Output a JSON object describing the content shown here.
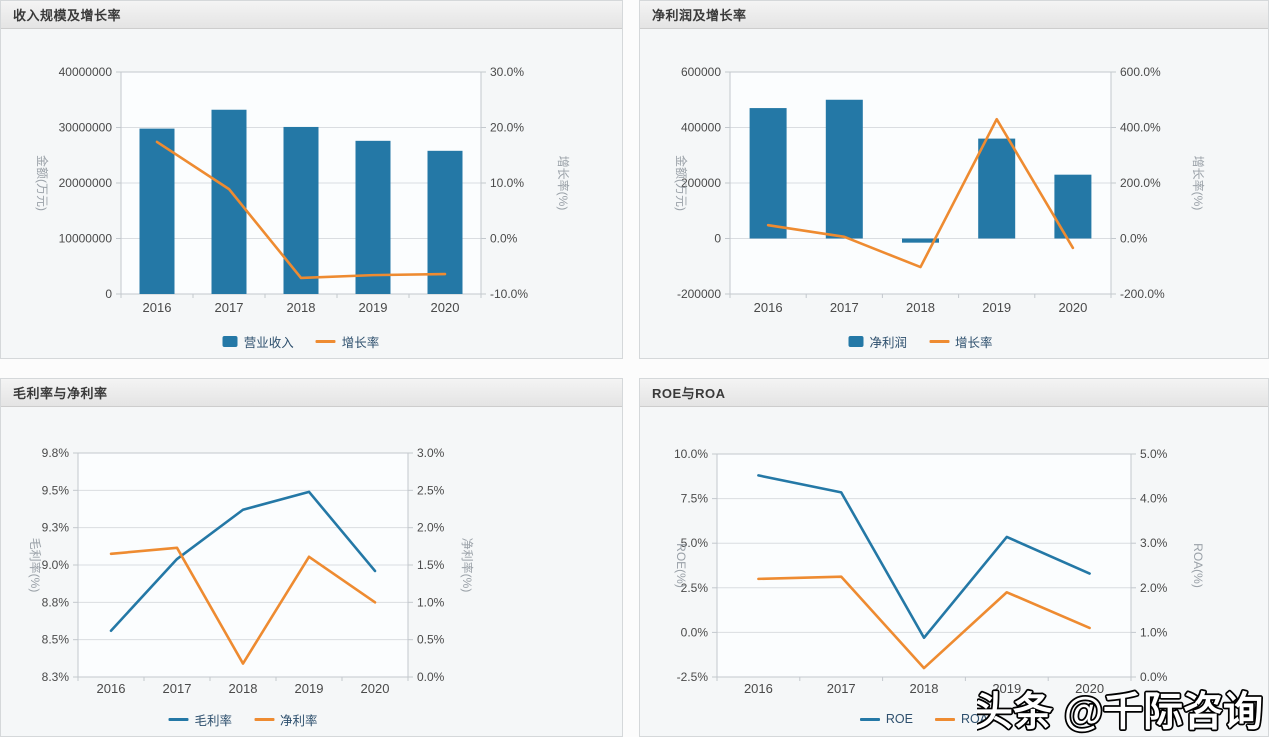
{
  "page": {
    "watermark": "头条 @千际咨询"
  },
  "colors": {
    "bar_blue": "#2478a6",
    "line_blue": "#2478a6",
    "line_orange": "#ee8b31"
  },
  "panels": [
    {
      "title": "收入规模及增长率",
      "chart_data": {
        "type": "bar",
        "subtype": "combo-bar-line",
        "categories": [
          "2016",
          "2017",
          "2018",
          "2019",
          "2020"
        ],
        "grid": true,
        "legend_position": "bottom",
        "left_axis": {
          "title": "金额(万元)",
          "min": 0,
          "max": 40000000,
          "tick_labels": [
            "0",
            "10000000",
            "20000000",
            "30000000",
            "40000000"
          ]
        },
        "right_axis": {
          "title": "增长率(%)",
          "min": -10,
          "max": 30,
          "tick_labels": [
            "-10.0%",
            "0.0%",
            "10.0%",
            "20.0%",
            "30.0%"
          ]
        },
        "series": [
          {
            "name": "营业收入",
            "type": "bar",
            "axis": "left",
            "color": "#2478a6",
            "values": [
              29800000,
              33200000,
              30100000,
              27600000,
              25800000
            ]
          },
          {
            "name": "增长率",
            "type": "line",
            "axis": "right",
            "color": "#ee8b31",
            "values": [
              17.4,
              8.9,
              -7.1,
              -6.6,
              -6.4
            ]
          }
        ]
      }
    },
    {
      "title": "净利润及增长率",
      "chart_data": {
        "type": "bar",
        "subtype": "combo-bar-line",
        "categories": [
          "2016",
          "2017",
          "2018",
          "2019",
          "2020"
        ],
        "grid": true,
        "legend_position": "bottom",
        "left_axis": {
          "title": "金额(万元)",
          "min": -200000,
          "max": 600000,
          "tick_labels": [
            "-200000",
            "0",
            "200000",
            "400000",
            "600000"
          ]
        },
        "right_axis": {
          "title": "增长率(%)",
          "min": -200,
          "max": 600,
          "tick_labels": [
            "-200.0%",
            "0.0%",
            "200.0%",
            "400.0%",
            "600.0%"
          ]
        },
        "series": [
          {
            "name": "净利润",
            "type": "bar",
            "axis": "left",
            "color": "#2478a6",
            "values": [
              470000,
              500000,
              -15000,
              360000,
              230000
            ]
          },
          {
            "name": "增长率",
            "type": "line",
            "axis": "right",
            "color": "#ee8b31",
            "values": [
              48,
              6,
              -103,
              430,
              -34
            ]
          }
        ]
      }
    },
    {
      "title": "毛利率与净利率",
      "chart_data": {
        "type": "line",
        "categories": [
          "2016",
          "2017",
          "2018",
          "2019",
          "2020"
        ],
        "grid": true,
        "legend_position": "bottom",
        "left_axis": {
          "title": "毛利率(%)",
          "min": 8.25,
          "max": 9.75,
          "tick_labels": [
            "8.3%",
            "8.5%",
            "8.8%",
            "9.0%",
            "9.3%",
            "9.5%",
            "9.8%"
          ]
        },
        "right_axis": {
          "title": "净利率(%)",
          "min": 0,
          "max": 3,
          "tick_labels": [
            "0.0%",
            "0.5%",
            "1.0%",
            "1.5%",
            "2.0%",
            "2.5%",
            "3.0%"
          ]
        },
        "series": [
          {
            "name": "毛利率",
            "type": "line",
            "axis": "left",
            "color": "#2478a6",
            "values": [
              8.56,
              9.04,
              9.37,
              9.49,
              8.96
            ]
          },
          {
            "name": "净利率",
            "type": "line",
            "axis": "right",
            "color": "#ee8b31",
            "values": [
              1.65,
              1.73,
              0.18,
              1.61,
              1.0
            ]
          }
        ]
      }
    },
    {
      "title": "ROE与ROA",
      "chart_data": {
        "type": "line",
        "categories": [
          "2016",
          "2017",
          "2018",
          "2019",
          "2020"
        ],
        "grid": true,
        "legend_position": "bottom",
        "left_axis": {
          "title": "ROE(%)",
          "min": -2.5,
          "max": 10,
          "tick_labels": [
            "-2.5%",
            "0.0%",
            "2.5%",
            "5.0%",
            "7.5%",
            "10.0%"
          ]
        },
        "right_axis": {
          "title": "ROA(%)",
          "min": 0,
          "max": 5,
          "tick_labels": [
            "0.0%",
            "1.0%",
            "2.0%",
            "3.0%",
            "4.0%",
            "5.0%"
          ]
        },
        "series": [
          {
            "name": "ROE",
            "type": "line",
            "axis": "left",
            "color": "#2478a6",
            "values": [
              8.8,
              7.85,
              -0.3,
              5.35,
              3.3
            ]
          },
          {
            "name": "ROA",
            "type": "line",
            "axis": "right",
            "color": "#ee8b31",
            "values": [
              2.2,
              2.25,
              0.2,
              1.9,
              1.1
            ]
          }
        ]
      }
    }
  ]
}
